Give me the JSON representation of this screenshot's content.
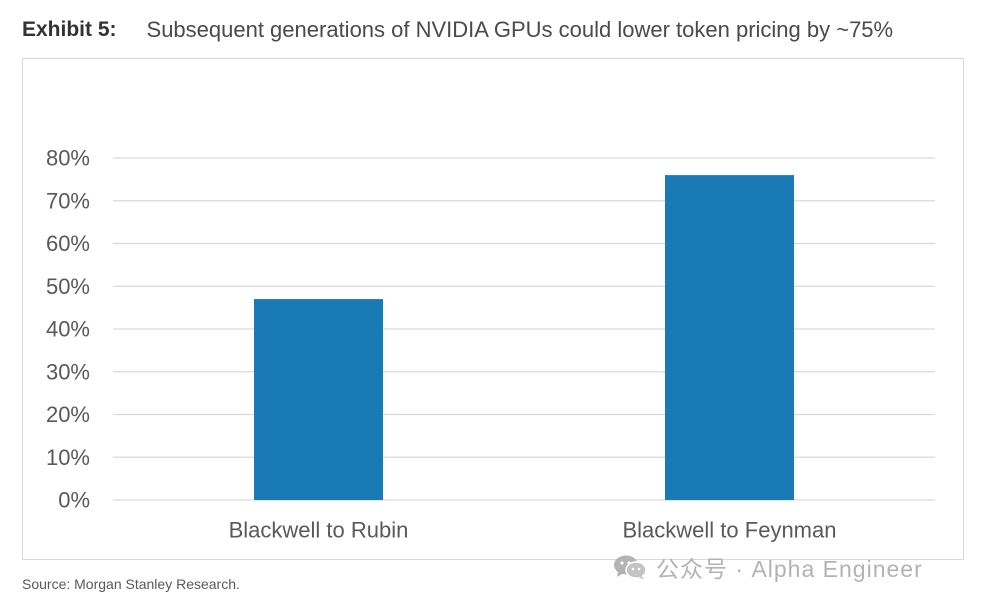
{
  "header": {
    "exhibit_label": "Exhibit 5:",
    "title": "Subsequent generations of NVIDIA GPUs could lower token pricing by ~75%"
  },
  "source": "Source: Morgan Stanley Research.",
  "watermark": {
    "text": "公众号 · Alpha Engineer",
    "icon": "wechat-icon"
  },
  "colors": {
    "bar": "#1a7ab5",
    "grid": "#d9d9d9",
    "tick_text": "#595959"
  },
  "chart_data": {
    "type": "bar",
    "categories": [
      "Blackwell to Rubin",
      "Blackwell to Feynman"
    ],
    "values": [
      0.47,
      0.76
    ],
    "ylim": [
      0,
      0.8
    ],
    "yticks": [
      0,
      0.1,
      0.2,
      0.3,
      0.4,
      0.5,
      0.6,
      0.7,
      0.8
    ],
    "ytick_labels": [
      "0%",
      "10%",
      "20%",
      "30%",
      "40%",
      "50%",
      "60%",
      "70%",
      "80%"
    ],
    "grid": true,
    "legend": "none"
  }
}
